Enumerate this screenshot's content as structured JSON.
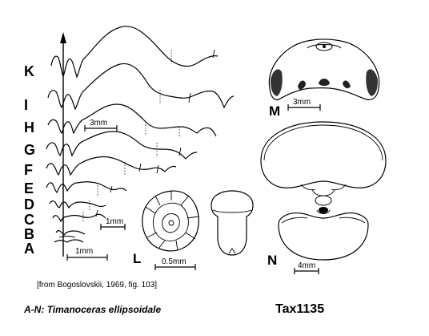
{
  "figure": {
    "row_labels": [
      "K",
      "I",
      "H",
      "G",
      "F",
      "E",
      "D",
      "C",
      "B",
      "A"
    ],
    "panel_labels": {
      "L": "L",
      "M": "M",
      "N": "N"
    },
    "scale_bars": {
      "h_3mm": "3mm",
      "c_1mm": "1mm",
      "a_1mm": "1mm",
      "l_05mm": "0.5mm",
      "m_3mm": "3mm",
      "n_4mm": "4mm"
    },
    "source": "[from Bogoslovskii, 1969, fig. 103]",
    "species": "A-N: Timanoceras ellipsoidale",
    "tax_id": "Tax1135"
  }
}
